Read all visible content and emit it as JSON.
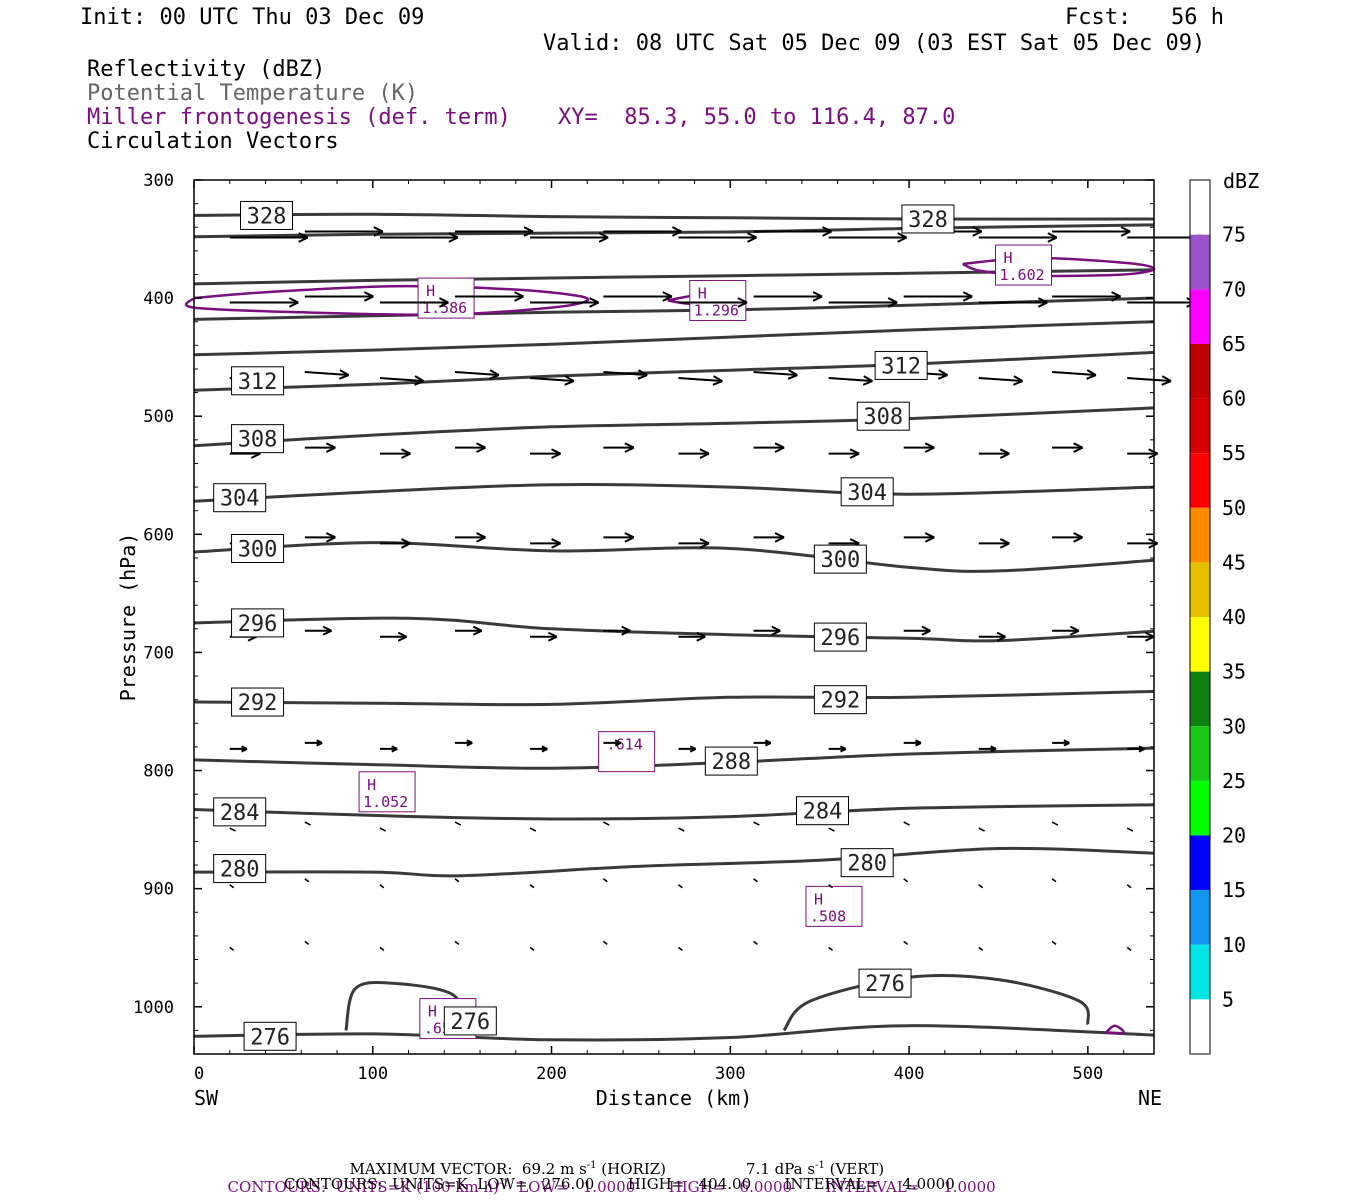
{
  "header": {
    "init": "Init: 00 UTC Thu 03 Dec 09",
    "fcst": "Fcst:   56 h",
    "valid": "Valid: 08 UTC Sat 05 Dec 09 (03 EST Sat 05 Dec 09)",
    "line1": "Reflectivity (dBZ)",
    "line2": "Potential Temperature (K)",
    "line3": "Miller frontogenesis (def. term)",
    "xy": "XY=  85.3, 55.0 to 116.4, 87.0",
    "line4": "Circulation Vectors"
  },
  "colors": {
    "theta": "#3a3a3a",
    "fronto": "#7a0f80",
    "vector": "#000000"
  },
  "chart_data": {
    "type": "cross-section",
    "xlabel": "Distance (km)",
    "ylabel": "Pressure (hPa)",
    "xlim": [
      0,
      537
    ],
    "ylim": [
      300,
      1040
    ],
    "y_inverted": true,
    "x_ticks": [
      0,
      100,
      200,
      300,
      400,
      500
    ],
    "y_ticks": [
      300,
      400,
      500,
      600,
      700,
      800,
      900,
      1000
    ],
    "x_ends": {
      "left": "SW",
      "right": "NE"
    },
    "colorbar": {
      "unit": "dBZ",
      "labels": [
        "75",
        "70",
        "65",
        "60",
        "55",
        "50",
        "45",
        "40",
        "35",
        "30",
        "25",
        "20",
        "15",
        "10",
        "5"
      ],
      "colors": [
        "#ffffff",
        "#9955cc",
        "#ff00ff",
        "#c00000",
        "#d40000",
        "#ff0000",
        "#ff8c00",
        "#e6c000",
        "#ffff00",
        "#108010",
        "#19c819",
        "#00ff00",
        "#0000ff",
        "#1496f0",
        "#00e6e6",
        "#ffffff"
      ]
    },
    "theta_contours": [
      {
        "level": 328,
        "points": [
          [
            0,
            330
          ],
          [
            100,
            329
          ],
          [
            200,
            331
          ],
          [
            300,
            332
          ],
          [
            400,
            333
          ],
          [
            537,
            333
          ]
        ]
      },
      {
        "level": "",
        "points": [
          [
            0,
            348
          ],
          [
            100,
            346
          ],
          [
            200,
            345
          ],
          [
            300,
            344
          ],
          [
            400,
            341
          ],
          [
            537,
            338
          ]
        ]
      },
      {
        "level": "",
        "points": [
          [
            0,
            388
          ],
          [
            100,
            385
          ],
          [
            200,
            383
          ],
          [
            300,
            381
          ],
          [
            400,
            379
          ],
          [
            537,
            376
          ]
        ]
      },
      {
        "level": "",
        "points": [
          [
            0,
            418
          ],
          [
            100,
            415
          ],
          [
            200,
            412
          ],
          [
            300,
            410
          ],
          [
            400,
            406
          ],
          [
            537,
            400
          ]
        ]
      },
      {
        "level": "",
        "points": [
          [
            0,
            448
          ],
          [
            100,
            444
          ],
          [
            200,
            439
          ],
          [
            300,
            433
          ],
          [
            400,
            427
          ],
          [
            537,
            420
          ]
        ]
      },
      {
        "level": 312,
        "points": [
          [
            0,
            478
          ],
          [
            100,
            473
          ],
          [
            200,
            466
          ],
          [
            300,
            461
          ],
          [
            400,
            456
          ],
          [
            537,
            446
          ]
        ]
      },
      {
        "level": 308,
        "points": [
          [
            0,
            525
          ],
          [
            100,
            516
          ],
          [
            200,
            509
          ],
          [
            300,
            506
          ],
          [
            400,
            502
          ],
          [
            537,
            493
          ]
        ]
      },
      {
        "level": 304,
        "points": [
          [
            0,
            572
          ],
          [
            100,
            564
          ],
          [
            200,
            558
          ],
          [
            300,
            560
          ],
          [
            400,
            566
          ],
          [
            537,
            560
          ]
        ]
      },
      {
        "level": 300,
        "points": [
          [
            0,
            615
          ],
          [
            100,
            607
          ],
          [
            200,
            614
          ],
          [
            300,
            612
          ],
          [
            400,
            628
          ],
          [
            450,
            631
          ],
          [
            537,
            622
          ]
        ]
      },
      {
        "level": 296,
        "points": [
          [
            0,
            675
          ],
          [
            120,
            671
          ],
          [
            200,
            680
          ],
          [
            300,
            685
          ],
          [
            400,
            688
          ],
          [
            450,
            690
          ],
          [
            537,
            682
          ]
        ]
      },
      {
        "level": 292,
        "points": [
          [
            0,
            742
          ],
          [
            100,
            743
          ],
          [
            200,
            744
          ],
          [
            300,
            738
          ],
          [
            400,
            738
          ],
          [
            537,
            733
          ]
        ]
      },
      {
        "level": 288,
        "points": [
          [
            0,
            791
          ],
          [
            100,
            795
          ],
          [
            200,
            798
          ],
          [
            300,
            793
          ],
          [
            400,
            786
          ],
          [
            537,
            781
          ]
        ]
      },
      {
        "level": 284,
        "points": [
          [
            0,
            833
          ],
          [
            100,
            838
          ],
          [
            200,
            841
          ],
          [
            300,
            839
          ],
          [
            400,
            832
          ],
          [
            537,
            829
          ]
        ]
      },
      {
        "level": 280,
        "points": [
          [
            0,
            886
          ],
          [
            100,
            886
          ],
          [
            150,
            889
          ],
          [
            250,
            881
          ],
          [
            350,
            876
          ],
          [
            450,
            866
          ],
          [
            537,
            870
          ]
        ]
      },
      {
        "level": 276,
        "points": [
          [
            0,
            1025
          ],
          [
            100,
            1023
          ],
          [
            200,
            1028
          ],
          [
            300,
            1026
          ],
          [
            400,
            1016
          ],
          [
            537,
            1024
          ]
        ]
      }
    ],
    "theta_closed_276": [
      [
        [
          85,
          1020
        ],
        [
          90,
          985
        ],
        [
          110,
          980
        ],
        [
          145,
          990
        ],
        [
          150,
          1020
        ]
      ],
      [
        [
          330,
          1020
        ],
        [
          345,
          995
        ],
        [
          400,
          975
        ],
        [
          450,
          977
        ],
        [
          495,
          995
        ],
        [
          500,
          1015
        ]
      ]
    ],
    "fronto_maxima": [
      {
        "label": "H",
        "value": "1.586",
        "x": 141,
        "y": 400
      },
      {
        "label": "H",
        "value": "1.296",
        "x": 293,
        "y": 402
      },
      {
        "label": "H",
        "value": "1.602",
        "x": 464,
        "y": 372
      },
      {
        "label": ".614",
        "value": "",
        "x": 242,
        "y": 784
      },
      {
        "label": "H",
        "value": "1.052",
        "x": 108,
        "y": 818
      },
      {
        "label": "H",
        "value": ".508",
        "x": 358,
        "y": 915
      },
      {
        "label": "H",
        "value": ".656",
        "x": 142,
        "y": 1010
      }
    ],
    "fronto_contours": [
      [
        [
          0,
          400
        ],
        [
          40,
          395
        ],
        [
          110,
          390
        ],
        [
          170,
          392
        ],
        [
          210,
          397
        ],
        [
          220,
          402
        ],
        [
          200,
          408
        ],
        [
          140,
          414
        ],
        [
          60,
          412
        ],
        [
          0,
          408
        ]
      ],
      [
        [
          265,
          402
        ],
        [
          280,
          398
        ],
        [
          295,
          400
        ],
        [
          280,
          405
        ]
      ],
      [
        [
          430,
          371
        ],
        [
          470,
          366
        ],
        [
          520,
          370
        ],
        [
          545,
          375
        ],
        [
          520,
          380
        ],
        [
          470,
          381
        ],
        [
          440,
          377
        ]
      ],
      [
        [
          510,
          1022
        ],
        [
          515,
          1016
        ],
        [
          520,
          1022
        ]
      ]
    ],
    "vectors": {
      "rows": [
        {
          "p": 347,
          "xs": [
            20,
            62,
            104,
            146,
            188,
            229,
            271,
            313,
            355,
            397,
            439,
            480,
            522
          ],
          "u": 40,
          "w": 0
        },
        {
          "p": 402,
          "xs": [
            20,
            62,
            104,
            146,
            188,
            229,
            271,
            313,
            355,
            397,
            439,
            480,
            522
          ],
          "u": 35,
          "w": 0
        },
        {
          "p": 466,
          "xs": [
            20,
            62,
            104,
            146,
            188,
            229,
            271,
            313,
            355,
            397,
            439,
            480,
            522
          ],
          "u": 22,
          "w": 1
        },
        {
          "p": 530,
          "xs": [
            20,
            62,
            104,
            146,
            188,
            229,
            271,
            313,
            355,
            397,
            439,
            480,
            522
          ],
          "u": 15,
          "w": 0
        },
        {
          "p": 606,
          "xs": [
            20,
            62,
            104,
            146,
            188,
            229,
            271,
            313,
            355,
            397,
            439,
            480,
            522
          ],
          "u": 15,
          "w": 0
        },
        {
          "p": 685,
          "xs": [
            20,
            62,
            104,
            146,
            188,
            229,
            271,
            313,
            355,
            397,
            439,
            480,
            522
          ],
          "u": 13,
          "w": 0
        },
        {
          "p": 780,
          "xs": [
            20,
            62,
            104,
            146,
            188,
            229,
            271,
            313,
            355,
            397,
            439,
            480,
            522
          ],
          "u": 8,
          "w": 0
        },
        {
          "p": 847,
          "xs": [
            20,
            62,
            104,
            146,
            188,
            229,
            271,
            313,
            355,
            397,
            439,
            480,
            522
          ],
          "u": 2,
          "w": 1
        },
        {
          "p": 895,
          "xs": [
            20,
            62,
            104,
            146,
            188,
            229,
            271,
            313,
            355,
            397,
            439,
            480,
            522
          ],
          "u": 1,
          "w": 1
        },
        {
          "p": 948,
          "xs": [
            20,
            62,
            104,
            146,
            188,
            229,
            271,
            313,
            355,
            397,
            439,
            480,
            522
          ],
          "u": 1,
          "w": 1
        }
      ]
    }
  },
  "footer": {
    "max_vector": "MAXIMUM VECTOR:  69.2 m s",
    "max_vector_sup": "-1",
    "max_vector_horiz": " (HORIZ)",
    "max_vector_vert": "7.1 dPa s",
    "max_vector_vert_sup": "-1",
    "max_vector_vert_tail": " (VERT)",
    "contours1_a": "CONTOURS:  UNITS=K (100 km h)",
    "contours1_sup": "-1",
    "contours1_b": "  LOW=   1.0000       HIGH=   6.0000       INTERVAL=     1.0000",
    "contours2": "CONTOURS:  UNITS=K  LOW=   276.00       HIGH=   404.00       INTERVAL=     4.0000"
  }
}
